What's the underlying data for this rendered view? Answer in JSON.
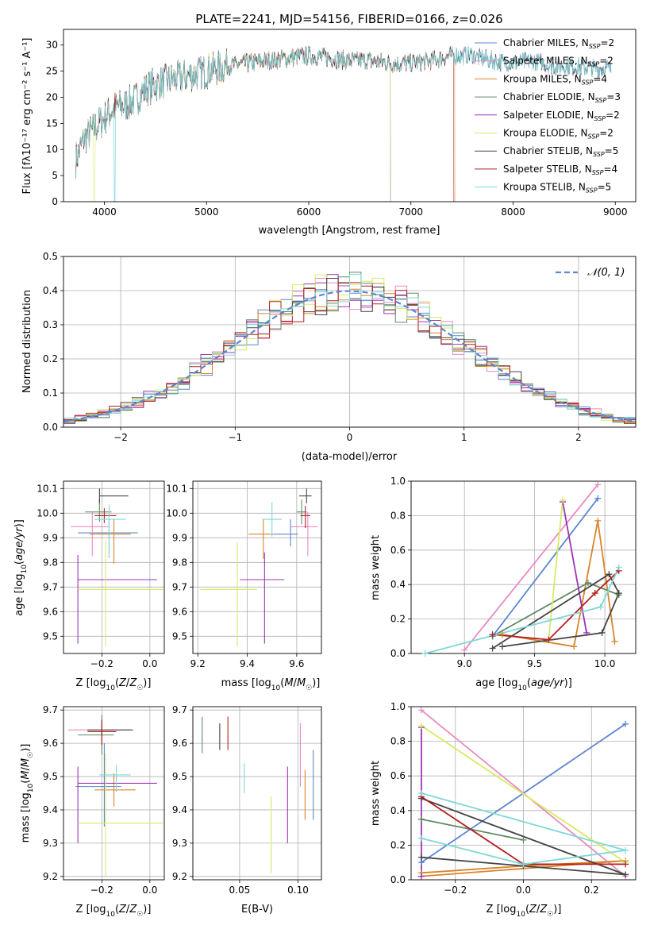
{
  "figure_title": "PLATE=2241, MJD=54156, FIBERID=0166, z=0.026",
  "colors": [
    "#5b86d0",
    "#e98ac2",
    "#d9842a",
    "#5f8a64",
    "#9b35b4",
    "#d7ea66",
    "#454545",
    "#b31f1f",
    "#7fd7d8"
  ],
  "chart_data": [
    {
      "id": "spectrum",
      "type": "line",
      "title": "PLATE=2241, MJD=54156, FIBERID=0166, z=0.026",
      "xlabel": "wavelength [Angstrom, rest frame]",
      "ylabel": "Flux [fλ10⁻¹⁷ erg cm⁻² s⁻¹ A⁻¹]",
      "xlim": [
        3600,
        9200
      ],
      "ylim": [
        0,
        33
      ],
      "xticks": [
        4000,
        5000,
        6000,
        7000,
        8000,
        9000
      ],
      "yticks": [
        0,
        5,
        10,
        15,
        20,
        25,
        30
      ],
      "grid": false,
      "legend_placement": "top-right",
      "continuum": {
        "x": [
          3720,
          3800,
          3900,
          4000,
          4100,
          4200,
          4300,
          4400,
          4500,
          4600,
          4800,
          5000,
          5200,
          5400,
          5600,
          5800,
          6000,
          6200,
          6400,
          6600,
          6800,
          7000,
          7200,
          7400,
          7600,
          7800,
          8000,
          8200,
          8400,
          8600,
          8800,
          8960
        ],
        "y": [
          8,
          12,
          14,
          16,
          18,
          18.5,
          19.5,
          21.5,
          22.5,
          23,
          24,
          25,
          26,
          26.5,
          27,
          27.5,
          28,
          27.5,
          27,
          27,
          26.5,
          26.5,
          27,
          28,
          28,
          27,
          26.5,
          27,
          26,
          26,
          25.5,
          25.5
        ]
      },
      "series": [
        {
          "name": "Chabrier MILES, N_SSP=2",
          "truncate_at": null,
          "drop_at": null
        },
        {
          "name": "Salpeter MILES, N_SSP=2",
          "truncate_at": null,
          "drop_at": null
        },
        {
          "name": "Kroupa MILES, N_SSP=4",
          "truncate_at": 7430,
          "drop_at": null
        },
        {
          "name": "Chabrier ELODIE, N_SSP=3",
          "truncate_at": 6800,
          "drop_at": null
        },
        {
          "name": "Salpeter ELODIE, N_SSP=2",
          "truncate_at": 6800,
          "drop_at": null
        },
        {
          "name": "Kroupa ELODIE, N_SSP=2",
          "truncate_at": 6800,
          "drop_at": 3900
        },
        {
          "name": "Chabrier STELIB, N_SSP=5",
          "truncate_at": null,
          "drop_at": null
        },
        {
          "name": "Salpeter STELIB, N_SSP=4",
          "truncate_at": 7420,
          "drop_at": null
        },
        {
          "name": "Kroupa STELIB, N_SSP=5",
          "truncate_at": null,
          "drop_at": 4100
        }
      ],
      "legend": [
        {
          "base": "Chabrier MILES, N",
          "sub": "SSP",
          "tail": "=2"
        },
        {
          "base": "Salpeter MILES, N",
          "sub": "SSP",
          "tail": "=2"
        },
        {
          "base": "Kroupa MILES, N",
          "sub": "SSP",
          "tail": "=4"
        },
        {
          "base": "Chabrier ELODIE, N",
          "sub": "SSP",
          "tail": "=3"
        },
        {
          "base": "Salpeter ELODIE, N",
          "sub": "SSP",
          "tail": "=2"
        },
        {
          "base": "Kroupa ELODIE, N",
          "sub": "SSP",
          "tail": "=2"
        },
        {
          "base": "Chabrier STELIB, N",
          "sub": "SSP",
          "tail": "=5"
        },
        {
          "base": "Salpeter STELIB, N",
          "sub": "SSP",
          "tail": "=4"
        },
        {
          "base": "Kroupa STELIB, N",
          "sub": "SSP",
          "tail": "=5"
        }
      ]
    },
    {
      "id": "residuals",
      "type": "area",
      "xlabel": "(data-model)/error",
      "ylabel": "Normed distribution",
      "xlim": [
        -2.5,
        2.5
      ],
      "ylim": [
        0,
        0.5
      ],
      "xticks": [
        -2,
        -1,
        0,
        1,
        2
      ],
      "xticklabels": [
        "−2",
        "−1",
        "0",
        "1",
        "2"
      ],
      "yticks": [
        0.0,
        0.1,
        0.2,
        0.3,
        0.4,
        0.5
      ],
      "yticklabels": [
        "0.0",
        "0.1",
        "0.2",
        "0.3",
        "0.4",
        "0.5"
      ],
      "grid": true,
      "bin_width": 0.1,
      "curve_label": "𝒩(0, 1)",
      "legend_placement": "top-right"
    },
    {
      "id": "age_vs_Z",
      "type": "scatter",
      "xlabel": "Z [log10(Z/Z☉)]",
      "ylabel": "age [log10(age/yr)]",
      "xlim": [
        -0.36,
        0.06
      ],
      "ylim": [
        9.43,
        10.13
      ],
      "xticks": [
        -0.2,
        0.0
      ],
      "xticklabels": [
        "−0.2",
        "0.0"
      ],
      "yticks": [
        9.5,
        9.6,
        9.7,
        9.8,
        9.9,
        10.0,
        10.1
      ],
      "yticklabels": [
        "9.5",
        "9.6",
        "9.7",
        "9.8",
        "9.9",
        "10.0",
        "10.1"
      ],
      "grid": true,
      "points": [
        {
          "x": -0.17,
          "y": 9.92,
          "xerr": [
            0.13,
            0.12
          ],
          "yerr": [
            0.1,
            0.06
          ]
        },
        {
          "x": -0.24,
          "y": 9.945,
          "xerr": [
            0.09,
            0.07
          ],
          "yerr": [
            0.12,
            0.06
          ]
        },
        {
          "x": -0.15,
          "y": 9.915,
          "xerr": [
            0.1,
            0.07
          ],
          "yerr": [
            0.12,
            0.06
          ]
        },
        {
          "x": -0.21,
          "y": 10.005,
          "xerr": [
            0.06,
            0.05
          ],
          "yerr": [
            0.04,
            0.05
          ]
        },
        {
          "x": -0.3,
          "y": 9.73,
          "xerr": [
            0.0,
            0.33
          ],
          "yerr": [
            0.26,
            0.1
          ]
        },
        {
          "x": -0.185,
          "y": 9.69,
          "xerr": [
            0.115,
            0.24
          ],
          "yerr": [
            0.23,
            0.2
          ]
        },
        {
          "x": -0.21,
          "y": 10.07,
          "xerr": [
            0.0,
            0.12
          ],
          "yerr": [
            0.03,
            0.03
          ]
        },
        {
          "x": -0.19,
          "y": 9.99,
          "xerr": [
            0.04,
            0.05
          ],
          "yerr": [
            0.03,
            0.03
          ]
        },
        {
          "x": -0.17,
          "y": 9.975,
          "xerr": [
            0.06,
            0.07
          ],
          "yerr": [
            0.15,
            0.06
          ]
        }
      ]
    },
    {
      "id": "age_vs_mass",
      "type": "scatter",
      "xlabel": "mass [log10(M/M☉)]",
      "xlim": [
        9.18,
        9.7
      ],
      "ylim": [
        9.43,
        10.13
      ],
      "xticks": [
        9.2,
        9.4,
        9.6
      ],
      "xticklabels": [
        "9.2",
        "9.4",
        "9.6"
      ],
      "yticks": [
        9.5,
        9.6,
        9.7,
        9.8,
        9.9,
        10.0,
        10.1
      ],
      "yticklabels": [
        "9.5",
        "9.6",
        "9.7",
        "9.8",
        "9.9",
        "10.0",
        "10.1"
      ],
      "grid": true,
      "points": [
        {
          "x": 9.575,
          "y": 9.915,
          "xerr": [
            0.07,
            0.03
          ],
          "yerr": [
            0.05,
            0.06
          ]
        },
        {
          "x": 9.645,
          "y": 9.945,
          "xerr": [
            0.07,
            0.04
          ],
          "yerr": [
            0.12,
            0.06
          ]
        },
        {
          "x": 9.465,
          "y": 9.915,
          "xerr": [
            0.06,
            0.04
          ],
          "yerr": [
            0.1,
            0.06
          ]
        },
        {
          "x": 9.62,
          "y": 10.005,
          "xerr": [
            0.02,
            0.02
          ],
          "yerr": [
            0.05,
            0.05
          ]
        },
        {
          "x": 9.47,
          "y": 9.73,
          "xerr": [
            0.1,
            0.08
          ],
          "yerr": [
            0.26,
            0.11
          ]
        },
        {
          "x": 9.36,
          "y": 9.69,
          "xerr": [
            0.15,
            0.08
          ],
          "yerr": [
            0.23,
            0.19
          ]
        },
        {
          "x": 9.64,
          "y": 10.07,
          "xerr": [
            0.03,
            0.02
          ],
          "yerr": [
            0.03,
            0.03
          ]
        },
        {
          "x": 9.635,
          "y": 9.99,
          "xerr": [
            0.02,
            0.02
          ],
          "yerr": [
            0.05,
            0.04
          ]
        },
        {
          "x": 9.5,
          "y": 9.975,
          "xerr": [
            0.04,
            0.04
          ],
          "yerr": [
            0.07,
            0.07
          ]
        }
      ]
    },
    {
      "id": "weight_vs_age",
      "type": "line",
      "xlabel": "age [log10(age/yr)]",
      "ylabel": "mass weight",
      "xlim": [
        8.62,
        10.22
      ],
      "ylim": [
        0,
        1
      ],
      "xticks": [
        9.0,
        9.5,
        10.0
      ],
      "xticklabels": [
        "9.0",
        "9.5",
        "10.0"
      ],
      "yticks": [
        0.0,
        0.2,
        0.4,
        0.6,
        0.8,
        1.0
      ],
      "yticklabels": [
        "0.0",
        "0.2",
        "0.4",
        "0.6",
        "0.8",
        "1.0"
      ],
      "grid": true,
      "series": [
        {
          "x": [
            9.2,
            9.95
          ],
          "y": [
            0.1,
            0.9
          ]
        },
        {
          "x": [
            9.0,
            9.95
          ],
          "y": [
            0.02,
            0.98
          ]
        },
        {
          "x": [
            9.27,
            9.78,
            9.95,
            10.07
          ],
          "y": [
            0.11,
            0.04,
            0.77,
            0.07
          ]
        },
        {
          "x": [
            9.2,
            9.88,
            10.1
          ],
          "y": [
            0.1,
            0.41,
            0.34
          ]
        },
        {
          "x": [
            9.7,
            9.87
          ],
          "y": [
            0.88,
            0.12
          ]
        },
        {
          "x": [
            9.6,
            9.7
          ],
          "y": [
            0.08,
            0.89
          ]
        },
        {
          "x": [
            9.27,
            9.98,
            10.1,
            10.03,
            9.2
          ],
          "y": [
            0.04,
            0.12,
            0.35,
            0.46,
            0.03
          ]
        },
        {
          "x": [
            9.2,
            9.6,
            9.93,
            10.1
          ],
          "y": [
            0.11,
            0.08,
            0.35,
            0.48
          ]
        },
        {
          "x": [
            8.72,
            9.97,
            10.1
          ],
          "y": [
            0.0,
            0.27,
            0.5
          ]
        }
      ]
    },
    {
      "id": "mass_vs_Z",
      "type": "scatter",
      "xlabel": "Z [log10(Z/Z☉)]",
      "ylabel": "mass [log10(M/M☉)]",
      "xlim": [
        -0.36,
        0.06
      ],
      "ylim": [
        9.19,
        9.71
      ],
      "xticks": [
        -0.2,
        0.0
      ],
      "xticklabels": [
        "−0.2",
        "0.0"
      ],
      "yticks": [
        9.2,
        9.3,
        9.4,
        9.5,
        9.6,
        9.7
      ],
      "yticklabels": [
        "9.2",
        "9.3",
        "9.4",
        "9.5",
        "9.6",
        "9.7"
      ],
      "grid": true,
      "points": [
        {
          "x": -0.19,
          "y": 9.47,
          "xerr": [
            0.12,
            0.07
          ],
          "yerr": [
            0.12,
            0.13
          ]
        },
        {
          "x": -0.2,
          "y": 9.64,
          "xerr": [
            0.14,
            0.12
          ],
          "yerr": [
            0.04,
            0.04
          ]
        },
        {
          "x": -0.15,
          "y": 9.46,
          "xerr": [
            0.08,
            0.09
          ],
          "yerr": [
            0.05,
            0.05
          ]
        },
        {
          "x": -0.2,
          "y": 9.625,
          "xerr": [
            0.1,
            0.05
          ],
          "yerr": [
            0.06,
            0.06
          ]
        },
        {
          "x": -0.3,
          "y": 9.48,
          "xerr": [
            0.0,
            0.33
          ],
          "yerr": [
            0.18,
            0.05
          ]
        },
        {
          "x": -0.185,
          "y": 9.36,
          "xerr": [
            0.115,
            0.24
          ],
          "yerr": [
            0.16,
            0.21
          ]
        },
        {
          "x": -0.2,
          "y": 9.64,
          "xerr": [
            0.06,
            0.13
          ],
          "yerr": [
            0.03,
            0.03
          ]
        },
        {
          "x": -0.2,
          "y": 9.635,
          "xerr": [
            0.06,
            0.06
          ],
          "yerr": [
            0.04,
            0.03
          ]
        },
        {
          "x": -0.14,
          "y": 9.505,
          "xerr": [
            0.07,
            0.06
          ],
          "yerr": [
            0.05,
            0.03
          ]
        }
      ]
    },
    {
      "id": "mass_vs_EBV",
      "type": "scatter",
      "xlabel": "E(B-V)",
      "xlim": [
        0.01,
        0.12
      ],
      "ylim": [
        9.19,
        9.71
      ],
      "xticks": [
        0.05,
        0.1
      ],
      "xticklabels": [
        "0.05",
        "0.10"
      ],
      "yticks": [
        9.2,
        9.3,
        9.4,
        9.5,
        9.6,
        9.7
      ],
      "yticklabels": [
        "9.2",
        "9.3",
        "9.4",
        "9.5",
        "9.6",
        "9.7"
      ],
      "grid": true,
      "points": [
        {
          "x": 0.113,
          "y": 9.47,
          "xerr": [
            0,
            0
          ],
          "yerr": [
            0.1,
            0.11
          ]
        },
        {
          "x": 0.102,
          "y": 9.53,
          "xerr": [
            0,
            0
          ],
          "yerr": [
            0.06,
            0.13
          ]
        },
        {
          "x": 0.106,
          "y": 9.45,
          "xerr": [
            0,
            0
          ],
          "yerr": [
            0.08,
            0.07
          ]
        },
        {
          "x": 0.018,
          "y": 9.62,
          "xerr": [
            0,
            0
          ],
          "yerr": [
            0.05,
            0.06
          ]
        },
        {
          "x": 0.091,
          "y": 9.43,
          "xerr": [
            0,
            0
          ],
          "yerr": [
            0.13,
            0.1
          ]
        },
        {
          "x": 0.077,
          "y": 9.32,
          "xerr": [
            0,
            0
          ],
          "yerr": [
            0.11,
            0.12
          ]
        },
        {
          "x": 0.033,
          "y": 9.62,
          "xerr": [
            0,
            0
          ],
          "yerr": [
            0.04,
            0.04
          ]
        },
        {
          "x": 0.04,
          "y": 9.62,
          "xerr": [
            0,
            0
          ],
          "yerr": [
            0.04,
            0.06
          ]
        },
        {
          "x": 0.054,
          "y": 9.49,
          "xerr": [
            0,
            0
          ],
          "yerr": [
            0.04,
            0.05
          ]
        }
      ]
    },
    {
      "id": "weight_vs_Z",
      "type": "line",
      "xlabel": "Z [log10(Z/Z☉)]",
      "ylabel": "mass weight",
      "xlim": [
        -0.33,
        0.33
      ],
      "ylim": [
        0,
        1
      ],
      "xticks": [
        -0.2,
        0.0,
        0.2
      ],
      "xticklabels": [
        "−0.2",
        "0.0",
        "0.2"
      ],
      "yticks": [
        0.0,
        0.2,
        0.4,
        0.6,
        0.8,
        1.0
      ],
      "yticklabels": [
        "0.0",
        "0.2",
        "0.4",
        "0.6",
        "0.8",
        "1.0"
      ],
      "grid": true,
      "series": [
        {
          "x": [
            -0.3,
            0.3
          ],
          "y": [
            0.1,
            0.9
          ]
        },
        {
          "x": [
            -0.3,
            0.3
          ],
          "y": [
            0.98,
            0.02
          ]
        },
        {
          "x": [
            -0.3,
            0.0,
            0.3,
            -0.3
          ],
          "y": [
            0.04,
            0.08,
            0.11,
            0.02
          ]
        },
        {
          "x": [
            -0.3,
            0.0
          ],
          "y": [
            0.35,
            0.23
          ]
        },
        {
          "x": [
            -0.3,
            -0.3
          ],
          "y": [
            0.02,
            0.88
          ]
        },
        {
          "x": [
            -0.3,
            0.3
          ],
          "y": [
            0.89,
            0.1
          ]
        },
        {
          "x": [
            -0.3,
            0.0,
            0.3,
            -0.3
          ],
          "y": [
            0.13,
            0.08,
            0.03,
            0.47
          ]
        },
        {
          "x": [
            -0.3,
            0.0,
            0.3
          ],
          "y": [
            0.48,
            0.09,
            0.09
          ]
        },
        {
          "x": [
            -0.3,
            0.0,
            0.3,
            -0.3
          ],
          "y": [
            0.24,
            0.09,
            0.17,
            0.5
          ]
        }
      ]
    }
  ]
}
